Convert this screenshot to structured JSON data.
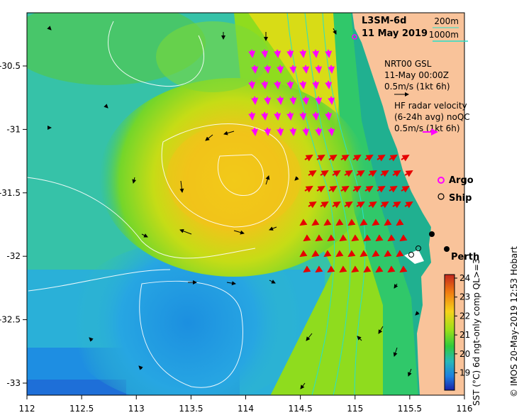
{
  "product": {
    "name": "L3SM-6d",
    "date": "11 May 2019"
  },
  "depth_legend": {
    "shallow": "200m",
    "deep": "1000m"
  },
  "gsl": {
    "line1": "NRT00 GSL",
    "line2": "11-May 00:00Z",
    "scale": "0.5m/s (1kt 6h)"
  },
  "radar": {
    "line1": "HF radar velocity",
    "line2": "(6-24h avg) noQC",
    "scale": "0.5m/s (1kt 6h)"
  },
  "markers": {
    "argo": "Argo",
    "ship": "Ship"
  },
  "city": "Perth",
  "colorbar": {
    "label": "SST (°C) 6d ngt-only comp QL>=3",
    "ticks": [
      "24",
      "23",
      "22",
      "21",
      "20",
      "19"
    ]
  },
  "axes": {
    "x_ticks": [
      "112",
      "112.5",
      "113",
      "113.5",
      "114",
      "114.5",
      "115",
      "115.5",
      "116"
    ],
    "y_ticks": [
      "-30.5",
      "-31",
      "-31.5",
      "-32",
      "-32.5",
      "-33"
    ]
  },
  "credit": "© IMOS 20-May-2019 12:53 Hobart",
  "colors": {
    "land": "#f9c39a",
    "bathy": "#28e0c8",
    "radar_arrow": "#e60000",
    "gsl_arrow": "#ff00ff",
    "sst_cool": "#1fa2e0",
    "sst_warm": "#f7c400"
  }
}
